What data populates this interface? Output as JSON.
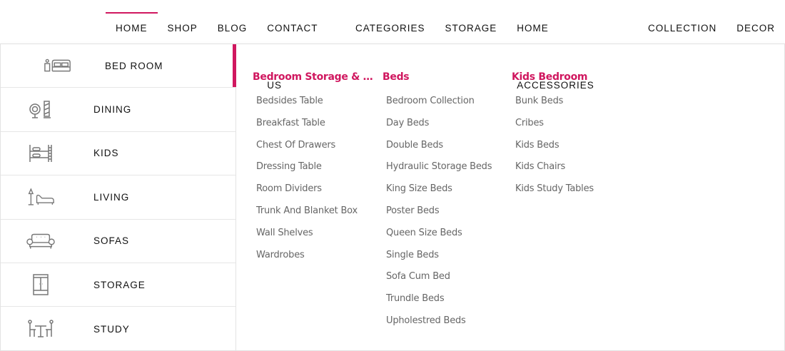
{
  "accent_color": "#d0175f",
  "nav": [
    {
      "label": "HOME",
      "active": true
    },
    {
      "label": "SHOP"
    },
    {
      "label": "BLOG"
    },
    {
      "label": "CONTACT US"
    },
    {
      "label": "CATEGORIES"
    },
    {
      "label": "STORAGE"
    },
    {
      "label": "HOME ACCESSORIES"
    },
    {
      "label": "COLLECTION"
    },
    {
      "label": "DECOR"
    }
  ],
  "categories": [
    {
      "label": "BED ROOM",
      "icon": "bed-icon",
      "active": true
    },
    {
      "label": "DINING",
      "icon": "dining-icon"
    },
    {
      "label": "KIDS",
      "icon": "bunk-bed-icon"
    },
    {
      "label": "LIVING",
      "icon": "lamp-lounge-icon"
    },
    {
      "label": "SOFAS",
      "icon": "sofa-icon"
    },
    {
      "label": "STORAGE",
      "icon": "wardrobe-icon"
    },
    {
      "label": "STUDY",
      "icon": "study-table-icon"
    }
  ],
  "columns": [
    {
      "title": "Bedroom Storage & A...",
      "items": [
        "Bedsides Table",
        "Breakfast Table",
        "Chest Of Drawers",
        "Dressing Table",
        "Room Dividers",
        "Trunk And Blanket Box",
        "Wall Shelves",
        "Wardrobes"
      ]
    },
    {
      "title": "Beds",
      "items": [
        "Bedroom Collection",
        "Day Beds",
        "Double Beds",
        "Hydraulic Storage Beds",
        "King Size Beds",
        "Poster Beds",
        "Queen Size Beds",
        "Single Beds",
        "Sofa Cum Bed",
        "Trundle Beds",
        "Upholestred Beds"
      ]
    },
    {
      "title": "Kids Bedroom",
      "items": [
        "Bunk Beds",
        "Cribes",
        "Kids Beds",
        "Kids Chairs",
        "Kids Study Tables"
      ]
    }
  ]
}
